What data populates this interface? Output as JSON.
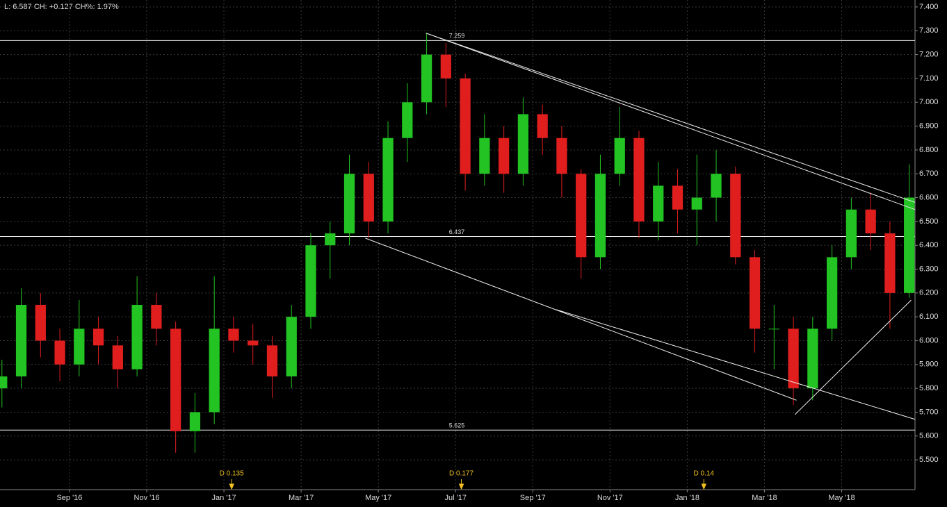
{
  "header": "L: 6.587 CH: +0.127 CH%: 1.97%",
  "chart_data": {
    "type": "candlestick",
    "x": [
      6.25,
      6.75,
      7.25,
      7.75,
      8.25,
      8.75,
      9.25,
      9.75,
      10.25,
      10.75,
      11.25,
      11.75,
      12.25,
      12.75,
      13.25,
      13.75,
      14.25,
      14.75,
      15.25,
      15.75,
      16.25,
      16.75,
      17.25,
      17.75,
      18.25,
      18.75,
      19.25,
      19.75,
      20.25,
      20.75,
      21.25,
      21.75,
      22.25,
      22.75,
      23.25,
      23.75,
      24.25,
      24.75,
      25.25,
      25.75,
      26.25,
      26.75,
      27.25,
      27.75,
      28.25,
      28.75,
      29.25,
      29.75
    ],
    "open": [
      5.8,
      5.85,
      6.15,
      6.0,
      5.9,
      6.05,
      5.98,
      5.88,
      6.15,
      6.05,
      5.62,
      5.7,
      6.05,
      6.0,
      5.98,
      5.85,
      6.1,
      6.4,
      6.45,
      6.7,
      6.5,
      6.85,
      7.0,
      7.2,
      7.1,
      6.7,
      6.85,
      6.7,
      6.95,
      6.85,
      6.7,
      6.35,
      6.7,
      6.85,
      6.5,
      6.65,
      6.55,
      6.6,
      6.7,
      6.35,
      6.05,
      6.05,
      5.8,
      6.05,
      6.35,
      6.55,
      6.45,
      6.2
    ],
    "high": [
      5.92,
      6.22,
      6.2,
      6.05,
      6.17,
      6.1,
      6.02,
      6.27,
      6.2,
      6.08,
      5.78,
      6.27,
      6.1,
      6.07,
      6.02,
      6.15,
      6.45,
      6.5,
      6.78,
      6.75,
      6.92,
      7.08,
      7.29,
      7.25,
      7.12,
      6.95,
      6.9,
      7.02,
      6.99,
      6.9,
      6.72,
      6.78,
      6.98,
      6.88,
      6.75,
      6.72,
      6.78,
      6.8,
      6.73,
      6.38,
      6.15,
      6.1,
      6.1,
      6.4,
      6.6,
      6.62,
      6.5,
      6.74
    ],
    "low": [
      5.72,
      5.8,
      5.93,
      5.83,
      5.85,
      5.9,
      5.8,
      5.85,
      5.98,
      5.53,
      5.53,
      5.65,
      5.95,
      5.9,
      5.76,
      5.8,
      6.05,
      6.26,
      6.4,
      6.43,
      6.45,
      6.75,
      6.95,
      6.98,
      6.63,
      6.65,
      6.62,
      6.65,
      6.78,
      6.6,
      6.26,
      6.3,
      6.65,
      6.43,
      6.42,
      6.45,
      6.4,
      6.5,
      6.32,
      5.95,
      5.88,
      5.73,
      5.75,
      6.0,
      6.3,
      6.38,
      6.05,
      6.18
    ],
    "close": [
      5.85,
      6.15,
      6.0,
      5.9,
      6.05,
      5.98,
      5.88,
      6.15,
      6.05,
      5.62,
      5.7,
      6.05,
      6.0,
      5.98,
      5.85,
      6.1,
      6.4,
      6.45,
      6.7,
      6.5,
      6.85,
      7.0,
      7.2,
      7.1,
      6.7,
      6.85,
      6.7,
      6.95,
      6.85,
      6.7,
      6.35,
      6.7,
      6.85,
      6.5,
      6.65,
      6.55,
      6.6,
      6.7,
      6.35,
      6.05,
      6.05,
      5.8,
      6.05,
      6.35,
      6.55,
      6.45,
      6.2,
      6.6
    ],
    "up_color": "#22c322",
    "down_color": "#e01e1e",
    "xlim": [
      6.2,
      29.9
    ],
    "ylim": [
      5.375,
      7.429
    ],
    "xticks": [
      {
        "value": 8,
        "label": "Sep '16"
      },
      {
        "value": 10,
        "label": "Nov '16"
      },
      {
        "value": 12,
        "label": "Jan '17"
      },
      {
        "value": 14,
        "label": "Mar '17"
      },
      {
        "value": 16,
        "label": "May '17"
      },
      {
        "value": 18,
        "label": "Jul '17"
      },
      {
        "value": 20,
        "label": "Sep '17"
      },
      {
        "value": 22,
        "label": "Nov '17"
      },
      {
        "value": 24,
        "label": "Jan '18"
      },
      {
        "value": 26,
        "label": "Mar '18"
      },
      {
        "value": 28,
        "label": "May '18"
      }
    ],
    "yticks": [
      {
        "value": 7.4,
        "label": "7.400"
      },
      {
        "value": 7.3,
        "label": "7.300"
      },
      {
        "value": 7.2,
        "label": "7.200"
      },
      {
        "value": 7.1,
        "label": "7.100"
      },
      {
        "value": 7.0,
        "label": "7.000"
      },
      {
        "value": 6.9,
        "label": "6.900"
      },
      {
        "value": 6.8,
        "label": "6.800"
      },
      {
        "value": 6.7,
        "label": "6.700"
      },
      {
        "value": 6.6,
        "label": "6.600"
      },
      {
        "value": 6.5,
        "label": "6.500"
      },
      {
        "value": 6.4,
        "label": "6.400"
      },
      {
        "value": 6.3,
        "label": "6.300"
      },
      {
        "value": 6.2,
        "label": "6.200"
      },
      {
        "value": 6.1,
        "label": "6.100"
      },
      {
        "value": 6.0,
        "label": "6.000"
      },
      {
        "value": 5.9,
        "label": "5.900"
      },
      {
        "value": 5.8,
        "label": "5.800"
      },
      {
        "value": 5.7,
        "label": "5.700"
      },
      {
        "value": 5.6,
        "label": "5.600"
      },
      {
        "value": 5.5,
        "label": "5.500"
      }
    ],
    "grid": true,
    "hlines": [
      7.259,
      6.437,
      5.625
    ],
    "trendlines": [
      {
        "x": [
          17.23,
          29.9
        ],
        "y": [
          7.29,
          6.55
        ]
      },
      {
        "x": [
          17.23,
          29.9
        ],
        "y": [
          7.29,
          6.58
        ]
      },
      {
        "x": [
          15.66,
          26.83
        ],
        "y": [
          6.43,
          5.75
        ]
      },
      {
        "x": [
          20.61,
          29.9
        ],
        "y": [
          6.13,
          5.67
        ]
      },
      {
        "x": [
          26.79,
          29.8
        ],
        "y": [
          5.69,
          6.17
        ]
      }
    ],
    "events": [
      {
        "x": 12.2,
        "label": "D 0.135"
      },
      {
        "x": 18.15,
        "label": "D 0.177"
      },
      {
        "x": 24.43,
        "label": "D 0.14"
      }
    ]
  }
}
